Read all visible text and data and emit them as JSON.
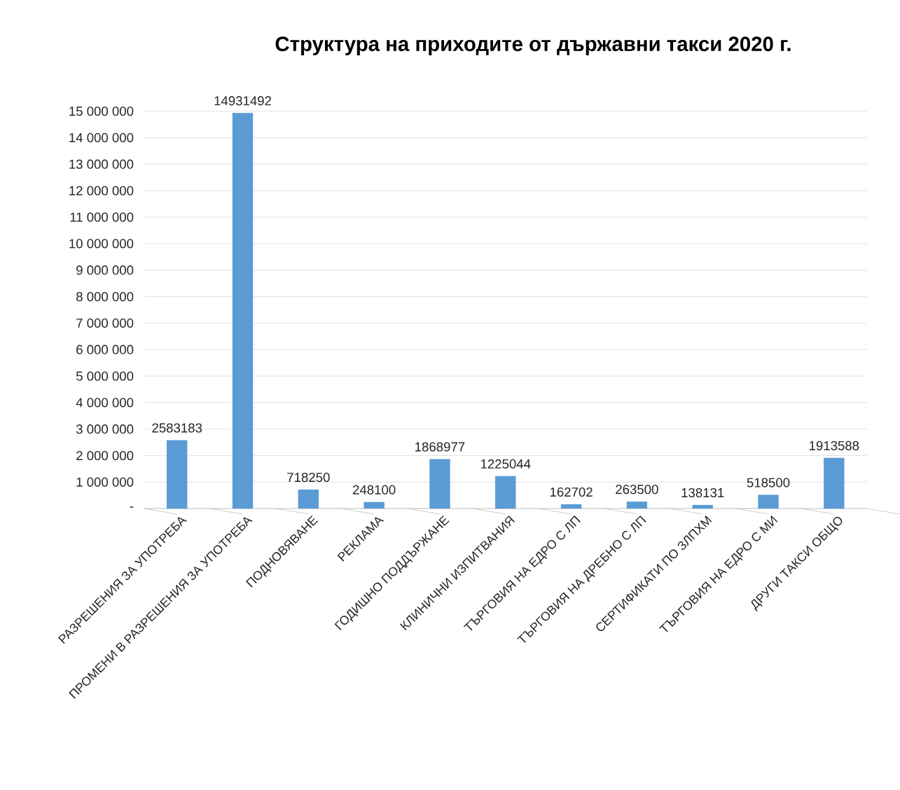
{
  "chart_data": {
    "type": "bar",
    "title": "Структура на приходите от държавни такси 2020 г.",
    "categories": [
      "РАЗРЕШЕНИЯ ЗА УПОТРЕБА",
      "ПРОМЕНИ В РАЗРЕШЕНИЯ ЗА УПОТРЕБА",
      "ПОДНОВЯВАНЕ",
      "РЕКЛАМА",
      "ГОДИШНО ПОДДЪРЖАНЕ",
      "КЛИНИЧНИ ИЗПИТВАНИЯ",
      "ТЪРГОВИЯ НА ЕДРО С ЛП",
      "ТЪРГОВИЯ НА ДРЕБНО С ЛП",
      "СЕРТИФИКАТИ ПО ЗЛПХМ",
      "ТЪРГОВИЯ НА ЕДРО С МИ",
      "ДРУГИ ТАКСИ ОБЩО"
    ],
    "values": [
      2583183,
      14931492,
      718250,
      248100,
      1868977,
      1225044,
      162702,
      263500,
      138131,
      518500,
      1913588
    ],
    "color": "#5b9bd5",
    "ylim": [
      0,
      15000000
    ],
    "yticks": [
      {
        "value": 0,
        "label": "-"
      },
      {
        "value": 1000000,
        "label": "1 000 000"
      },
      {
        "value": 2000000,
        "label": "2 000 000"
      },
      {
        "value": 3000000,
        "label": "3 000 000"
      },
      {
        "value": 4000000,
        "label": "4 000 000"
      },
      {
        "value": 5000000,
        "label": "5 000 000"
      },
      {
        "value": 6000000,
        "label": "6 000 000"
      },
      {
        "value": 7000000,
        "label": "7 000 000"
      },
      {
        "value": 8000000,
        "label": "8 000 000"
      },
      {
        "value": 9000000,
        "label": "9 000 000"
      },
      {
        "value": 10000000,
        "label": "10 000 000"
      },
      {
        "value": 11000000,
        "label": "11 000 000"
      },
      {
        "value": 12000000,
        "label": "12 000 000"
      },
      {
        "value": 13000000,
        "label": "13 000 000"
      },
      {
        "value": 14000000,
        "label": "14 000 000"
      },
      {
        "value": 15000000,
        "label": "15 000 000"
      }
    ],
    "grid": "y",
    "data_labels": true
  }
}
